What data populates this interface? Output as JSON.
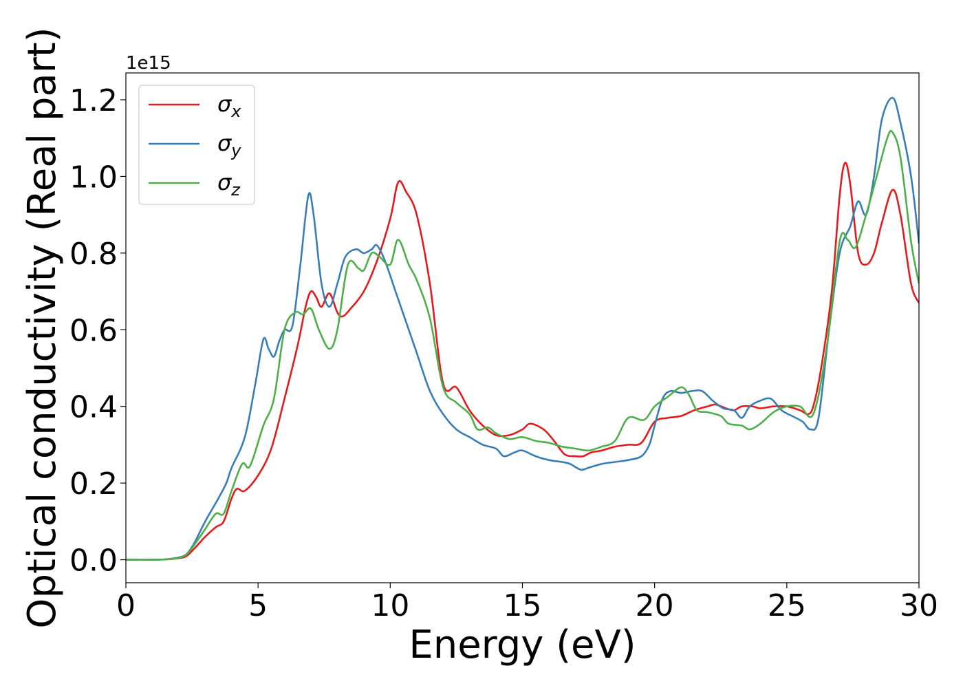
{
  "chart_data": {
    "type": "line",
    "title": "",
    "xlabel": "Energy (eV)",
    "ylabel": "Optical conductivity (Real part)",
    "y_offset_label": "1e15",
    "xlim": [
      0,
      30
    ],
    "ylim": [
      -0.06,
      1.27
    ],
    "xticks": [
      0,
      5,
      10,
      15,
      20,
      25,
      30
    ],
    "xtick_labels": [
      "0",
      "5",
      "10",
      "15",
      "20",
      "25",
      "30"
    ],
    "yticks": [
      0.0,
      0.2,
      0.4,
      0.6,
      0.8,
      1.0,
      1.2
    ],
    "ytick_labels": [
      "0.0",
      "0.2",
      "0.4",
      "0.6",
      "0.8",
      "1.0",
      "1.2"
    ],
    "grid": false,
    "legend_position": "top-left",
    "series": [
      {
        "name": "σx",
        "symbol": "σ",
        "subscript": "x",
        "color": "#e41a1c",
        "points": [
          [
            0,
            0
          ],
          [
            1,
            0
          ],
          [
            1.5,
            0.001
          ],
          [
            2,
            0.004
          ],
          [
            2.3,
            0.01
          ],
          [
            2.6,
            0.03
          ],
          [
            3,
            0.06
          ],
          [
            3.4,
            0.085
          ],
          [
            3.7,
            0.1
          ],
          [
            4,
            0.16
          ],
          [
            4.2,
            0.185
          ],
          [
            4.5,
            0.18
          ],
          [
            5,
            0.22
          ],
          [
            5.5,
            0.29
          ],
          [
            6,
            0.42
          ],
          [
            6.5,
            0.56
          ],
          [
            6.8,
            0.66
          ],
          [
            7,
            0.7
          ],
          [
            7.2,
            0.685
          ],
          [
            7.4,
            0.66
          ],
          [
            7.7,
            0.695
          ],
          [
            8,
            0.645
          ],
          [
            8.2,
            0.635
          ],
          [
            8.5,
            0.655
          ],
          [
            9,
            0.7
          ],
          [
            9.5,
            0.78
          ],
          [
            10,
            0.89
          ],
          [
            10.3,
            0.985
          ],
          [
            10.6,
            0.96
          ],
          [
            11,
            0.9
          ],
          [
            11.5,
            0.72
          ],
          [
            12,
            0.46
          ],
          [
            12.5,
            0.45
          ],
          [
            13,
            0.39
          ],
          [
            13.5,
            0.35
          ],
          [
            14,
            0.325
          ],
          [
            14.5,
            0.325
          ],
          [
            15,
            0.34
          ],
          [
            15.3,
            0.355
          ],
          [
            15.8,
            0.34
          ],
          [
            16.2,
            0.31
          ],
          [
            16.6,
            0.275
          ],
          [
            17,
            0.27
          ],
          [
            17.3,
            0.27
          ],
          [
            17.6,
            0.28
          ],
          [
            18,
            0.285
          ],
          [
            18.5,
            0.295
          ],
          [
            19,
            0.3
          ],
          [
            19.5,
            0.305
          ],
          [
            20,
            0.36
          ],
          [
            20.5,
            0.37
          ],
          [
            21,
            0.375
          ],
          [
            21.5,
            0.39
          ],
          [
            22,
            0.4
          ],
          [
            22.3,
            0.405
          ],
          [
            22.7,
            0.395
          ],
          [
            23,
            0.39
          ],
          [
            23.3,
            0.4
          ],
          [
            23.7,
            0.4
          ],
          [
            24,
            0.395
          ],
          [
            24.5,
            0.4
          ],
          [
            25,
            0.4
          ],
          [
            25.5,
            0.39
          ],
          [
            25.8,
            0.38
          ],
          [
            26,
            0.4
          ],
          [
            26.3,
            0.5
          ],
          [
            26.7,
            0.7
          ],
          [
            27,
            0.95
          ],
          [
            27.2,
            1.035
          ],
          [
            27.4,
            0.98
          ],
          [
            27.7,
            0.8
          ],
          [
            28,
            0.77
          ],
          [
            28.3,
            0.8
          ],
          [
            28.6,
            0.88
          ],
          [
            29,
            0.965
          ],
          [
            29.3,
            0.9
          ],
          [
            29.7,
            0.72
          ],
          [
            30,
            0.67
          ]
        ]
      },
      {
        "name": "σy",
        "symbol": "σ",
        "subscript": "y",
        "color": "#377eb8",
        "points": [
          [
            0,
            0
          ],
          [
            1,
            0
          ],
          [
            1.5,
            0.001
          ],
          [
            2,
            0.006
          ],
          [
            2.3,
            0.015
          ],
          [
            2.6,
            0.045
          ],
          [
            3,
            0.1
          ],
          [
            3.5,
            0.16
          ],
          [
            3.8,
            0.2
          ],
          [
            4,
            0.24
          ],
          [
            4.5,
            0.32
          ],
          [
            4.9,
            0.46
          ],
          [
            5.2,
            0.575
          ],
          [
            5.4,
            0.55
          ],
          [
            5.6,
            0.53
          ],
          [
            5.8,
            0.57
          ],
          [
            6,
            0.6
          ],
          [
            6.3,
            0.61
          ],
          [
            6.6,
            0.77
          ],
          [
            6.9,
            0.95
          ],
          [
            7.1,
            0.9
          ],
          [
            7.4,
            0.72
          ],
          [
            7.7,
            0.66
          ],
          [
            8,
            0.72
          ],
          [
            8.3,
            0.79
          ],
          [
            8.7,
            0.81
          ],
          [
            9,
            0.8
          ],
          [
            9.3,
            0.81
          ],
          [
            9.5,
            0.82
          ],
          [
            9.8,
            0.78
          ],
          [
            10.2,
            0.7
          ],
          [
            10.6,
            0.62
          ],
          [
            11,
            0.54
          ],
          [
            11.5,
            0.44
          ],
          [
            12,
            0.38
          ],
          [
            12.5,
            0.34
          ],
          [
            13,
            0.32
          ],
          [
            13.5,
            0.3
          ],
          [
            14,
            0.29
          ],
          [
            14.3,
            0.27
          ],
          [
            14.7,
            0.28
          ],
          [
            15,
            0.285
          ],
          [
            15.5,
            0.27
          ],
          [
            16,
            0.26
          ],
          [
            16.5,
            0.255
          ],
          [
            16.8,
            0.25
          ],
          [
            17.2,
            0.235
          ],
          [
            17.5,
            0.24
          ],
          [
            18,
            0.25
          ],
          [
            18.5,
            0.255
          ],
          [
            19,
            0.26
          ],
          [
            19.5,
            0.27
          ],
          [
            19.8,
            0.3
          ],
          [
            20,
            0.35
          ],
          [
            20.3,
            0.42
          ],
          [
            20.6,
            0.44
          ],
          [
            21,
            0.435
          ],
          [
            21.4,
            0.44
          ],
          [
            21.8,
            0.44
          ],
          [
            22.2,
            0.415
          ],
          [
            22.6,
            0.395
          ],
          [
            23,
            0.39
          ],
          [
            23.3,
            0.37
          ],
          [
            23.6,
            0.4
          ],
          [
            24,
            0.415
          ],
          [
            24.4,
            0.42
          ],
          [
            24.8,
            0.39
          ],
          [
            25.2,
            0.375
          ],
          [
            25.6,
            0.36
          ],
          [
            25.9,
            0.34
          ],
          [
            26.2,
            0.37
          ],
          [
            26.6,
            0.6
          ],
          [
            27,
            0.8
          ],
          [
            27.4,
            0.87
          ],
          [
            27.7,
            0.935
          ],
          [
            28,
            0.9
          ],
          [
            28.3,
            1.0
          ],
          [
            28.6,
            1.15
          ],
          [
            29,
            1.205
          ],
          [
            29.3,
            1.14
          ],
          [
            29.7,
            1.0
          ],
          [
            30,
            0.825
          ]
        ]
      },
      {
        "name": "σz",
        "symbol": "σ",
        "subscript": "z",
        "color": "#4daf4a",
        "points": [
          [
            0,
            0
          ],
          [
            1,
            0
          ],
          [
            1.5,
            0.001
          ],
          [
            2,
            0.005
          ],
          [
            2.3,
            0.014
          ],
          [
            2.6,
            0.04
          ],
          [
            3,
            0.08
          ],
          [
            3.4,
            0.12
          ],
          [
            3.7,
            0.12
          ],
          [
            4,
            0.18
          ],
          [
            4.4,
            0.25
          ],
          [
            4.7,
            0.245
          ],
          [
            5.2,
            0.35
          ],
          [
            5.6,
            0.42
          ],
          [
            6,
            0.6
          ],
          [
            6.4,
            0.645
          ],
          [
            6.7,
            0.64
          ],
          [
            7,
            0.655
          ],
          [
            7.3,
            0.6
          ],
          [
            7.7,
            0.55
          ],
          [
            8,
            0.6
          ],
          [
            8.4,
            0.77
          ],
          [
            8.8,
            0.76
          ],
          [
            9,
            0.755
          ],
          [
            9.3,
            0.8
          ],
          [
            9.6,
            0.79
          ],
          [
            10,
            0.77
          ],
          [
            10.3,
            0.835
          ],
          [
            10.7,
            0.77
          ],
          [
            11,
            0.73
          ],
          [
            11.5,
            0.63
          ],
          [
            12,
            0.45
          ],
          [
            12.5,
            0.41
          ],
          [
            13,
            0.38
          ],
          [
            13.3,
            0.34
          ],
          [
            13.7,
            0.345
          ],
          [
            14,
            0.33
          ],
          [
            14.5,
            0.315
          ],
          [
            15,
            0.32
          ],
          [
            15.5,
            0.31
          ],
          [
            16,
            0.305
          ],
          [
            16.5,
            0.295
          ],
          [
            17,
            0.29
          ],
          [
            17.5,
            0.285
          ],
          [
            18,
            0.295
          ],
          [
            18.5,
            0.31
          ],
          [
            19,
            0.37
          ],
          [
            19.6,
            0.365
          ],
          [
            20,
            0.4
          ],
          [
            20.5,
            0.425
          ],
          [
            21,
            0.45
          ],
          [
            21.3,
            0.43
          ],
          [
            21.6,
            0.39
          ],
          [
            22,
            0.385
          ],
          [
            22.5,
            0.375
          ],
          [
            22.8,
            0.355
          ],
          [
            23.3,
            0.35
          ],
          [
            23.6,
            0.34
          ],
          [
            24,
            0.355
          ],
          [
            24.5,
            0.385
          ],
          [
            25,
            0.4
          ],
          [
            25.5,
            0.4
          ],
          [
            26,
            0.38
          ],
          [
            26.5,
            0.55
          ],
          [
            27,
            0.83
          ],
          [
            27.3,
            0.835
          ],
          [
            27.6,
            0.815
          ],
          [
            28,
            0.9
          ],
          [
            28.4,
            1.0
          ],
          [
            28.8,
            1.1
          ],
          [
            29,
            1.115
          ],
          [
            29.3,
            1.05
          ],
          [
            29.7,
            0.83
          ],
          [
            30,
            0.72
          ]
        ]
      }
    ]
  }
}
